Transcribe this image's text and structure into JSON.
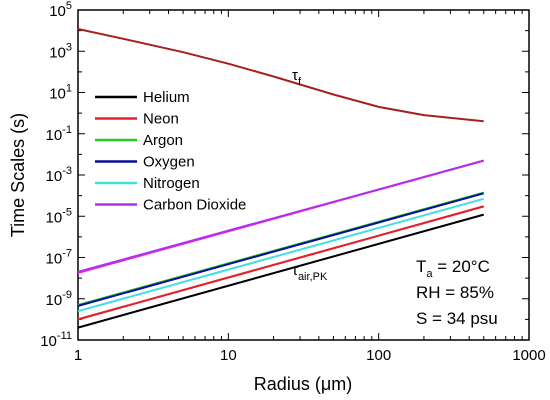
{
  "chart_data": {
    "type": "line",
    "xlabel": "Radius (μm)",
    "ylabel": "Time Scales (s)",
    "x_scale": "log",
    "y_scale": "log",
    "xlim": [
      1,
      1000
    ],
    "ylim": [
      1e-11,
      100000.0
    ],
    "grid": false,
    "legend_position": "left",
    "x_ticks": [
      1,
      10,
      100,
      1000
    ],
    "x_tick_labels": [
      "1",
      "10",
      "100",
      "1000"
    ],
    "y_ticks": [
      1e-11,
      1e-09,
      1e-07,
      1e-05,
      0.001,
      0.1,
      10.0,
      1000.0,
      100000.0
    ],
    "y_tick_labels": [
      {
        "base": "10",
        "exp": "-11"
      },
      {
        "base": "10",
        "exp": "-9"
      },
      {
        "base": "10",
        "exp": "-7"
      },
      {
        "base": "10",
        "exp": "-5"
      },
      {
        "base": "10",
        "exp": "-3"
      },
      {
        "base": "10",
        "exp": "-1"
      },
      {
        "base": "10",
        "exp": "1"
      },
      {
        "base": "10",
        "exp": "3"
      },
      {
        "base": "10",
        "exp": "5"
      }
    ],
    "series": [
      {
        "name": "Helium",
        "color": "#000000",
        "x": [
          1,
          500
        ],
        "y": [
          4e-11,
          1.2e-05
        ]
      },
      {
        "name": "Neon",
        "color": "#e8202a",
        "x": [
          1,
          500
        ],
        "y": [
          1e-10,
          3e-05
        ]
      },
      {
        "name": "Argon",
        "color": "#22cc22",
        "x": [
          1,
          500
        ],
        "y": [
          5e-10,
          0.00014
        ]
      },
      {
        "name": "Oxygen",
        "color": "#0a0aa0",
        "x": [
          1,
          500
        ],
        "y": [
          4.5e-10,
          0.00013
        ]
      },
      {
        "name": "Nitrogen",
        "color": "#40e0e0",
        "x": [
          1,
          500
        ],
        "y": [
          2.5e-10,
          7e-05
        ]
      },
      {
        "name": "Carbon Dioxide",
        "color": "#b030f0",
        "x": [
          1,
          500
        ],
        "y": [
          2e-08,
          0.005
        ]
      }
    ],
    "extra_curves": [
      {
        "color": "#a52020",
        "x": [
          1,
          2,
          5,
          10,
          20,
          50,
          100,
          200,
          500
        ],
        "y": [
          12000,
          4000,
          900,
          250,
          60,
          8,
          2,
          0.8,
          0.4
        ]
      },
      {
        "color": "#ff20d0",
        "x": [
          1,
          500
        ],
        "y": [
          1.8e-08,
          0.005
        ]
      },
      {
        "color": "#a0522d",
        "x": [
          1,
          500
        ],
        "y": [
          1e-10,
          3e-05
        ]
      }
    ],
    "annotations": {
      "tau_f": {
        "main": "τ",
        "sub": "f",
        "x": 28,
        "y": 30
      },
      "tau_air": {
        "main": "τ",
        "sub": "air,PK",
        "x": 28,
        "y": 4e-09
      }
    },
    "conditions": {
      "temp": {
        "main": "T",
        "sub": "a",
        "rest": " = 20°C"
      },
      "rh": "RH = 85%",
      "salinity": "S = 34 psu"
    }
  }
}
